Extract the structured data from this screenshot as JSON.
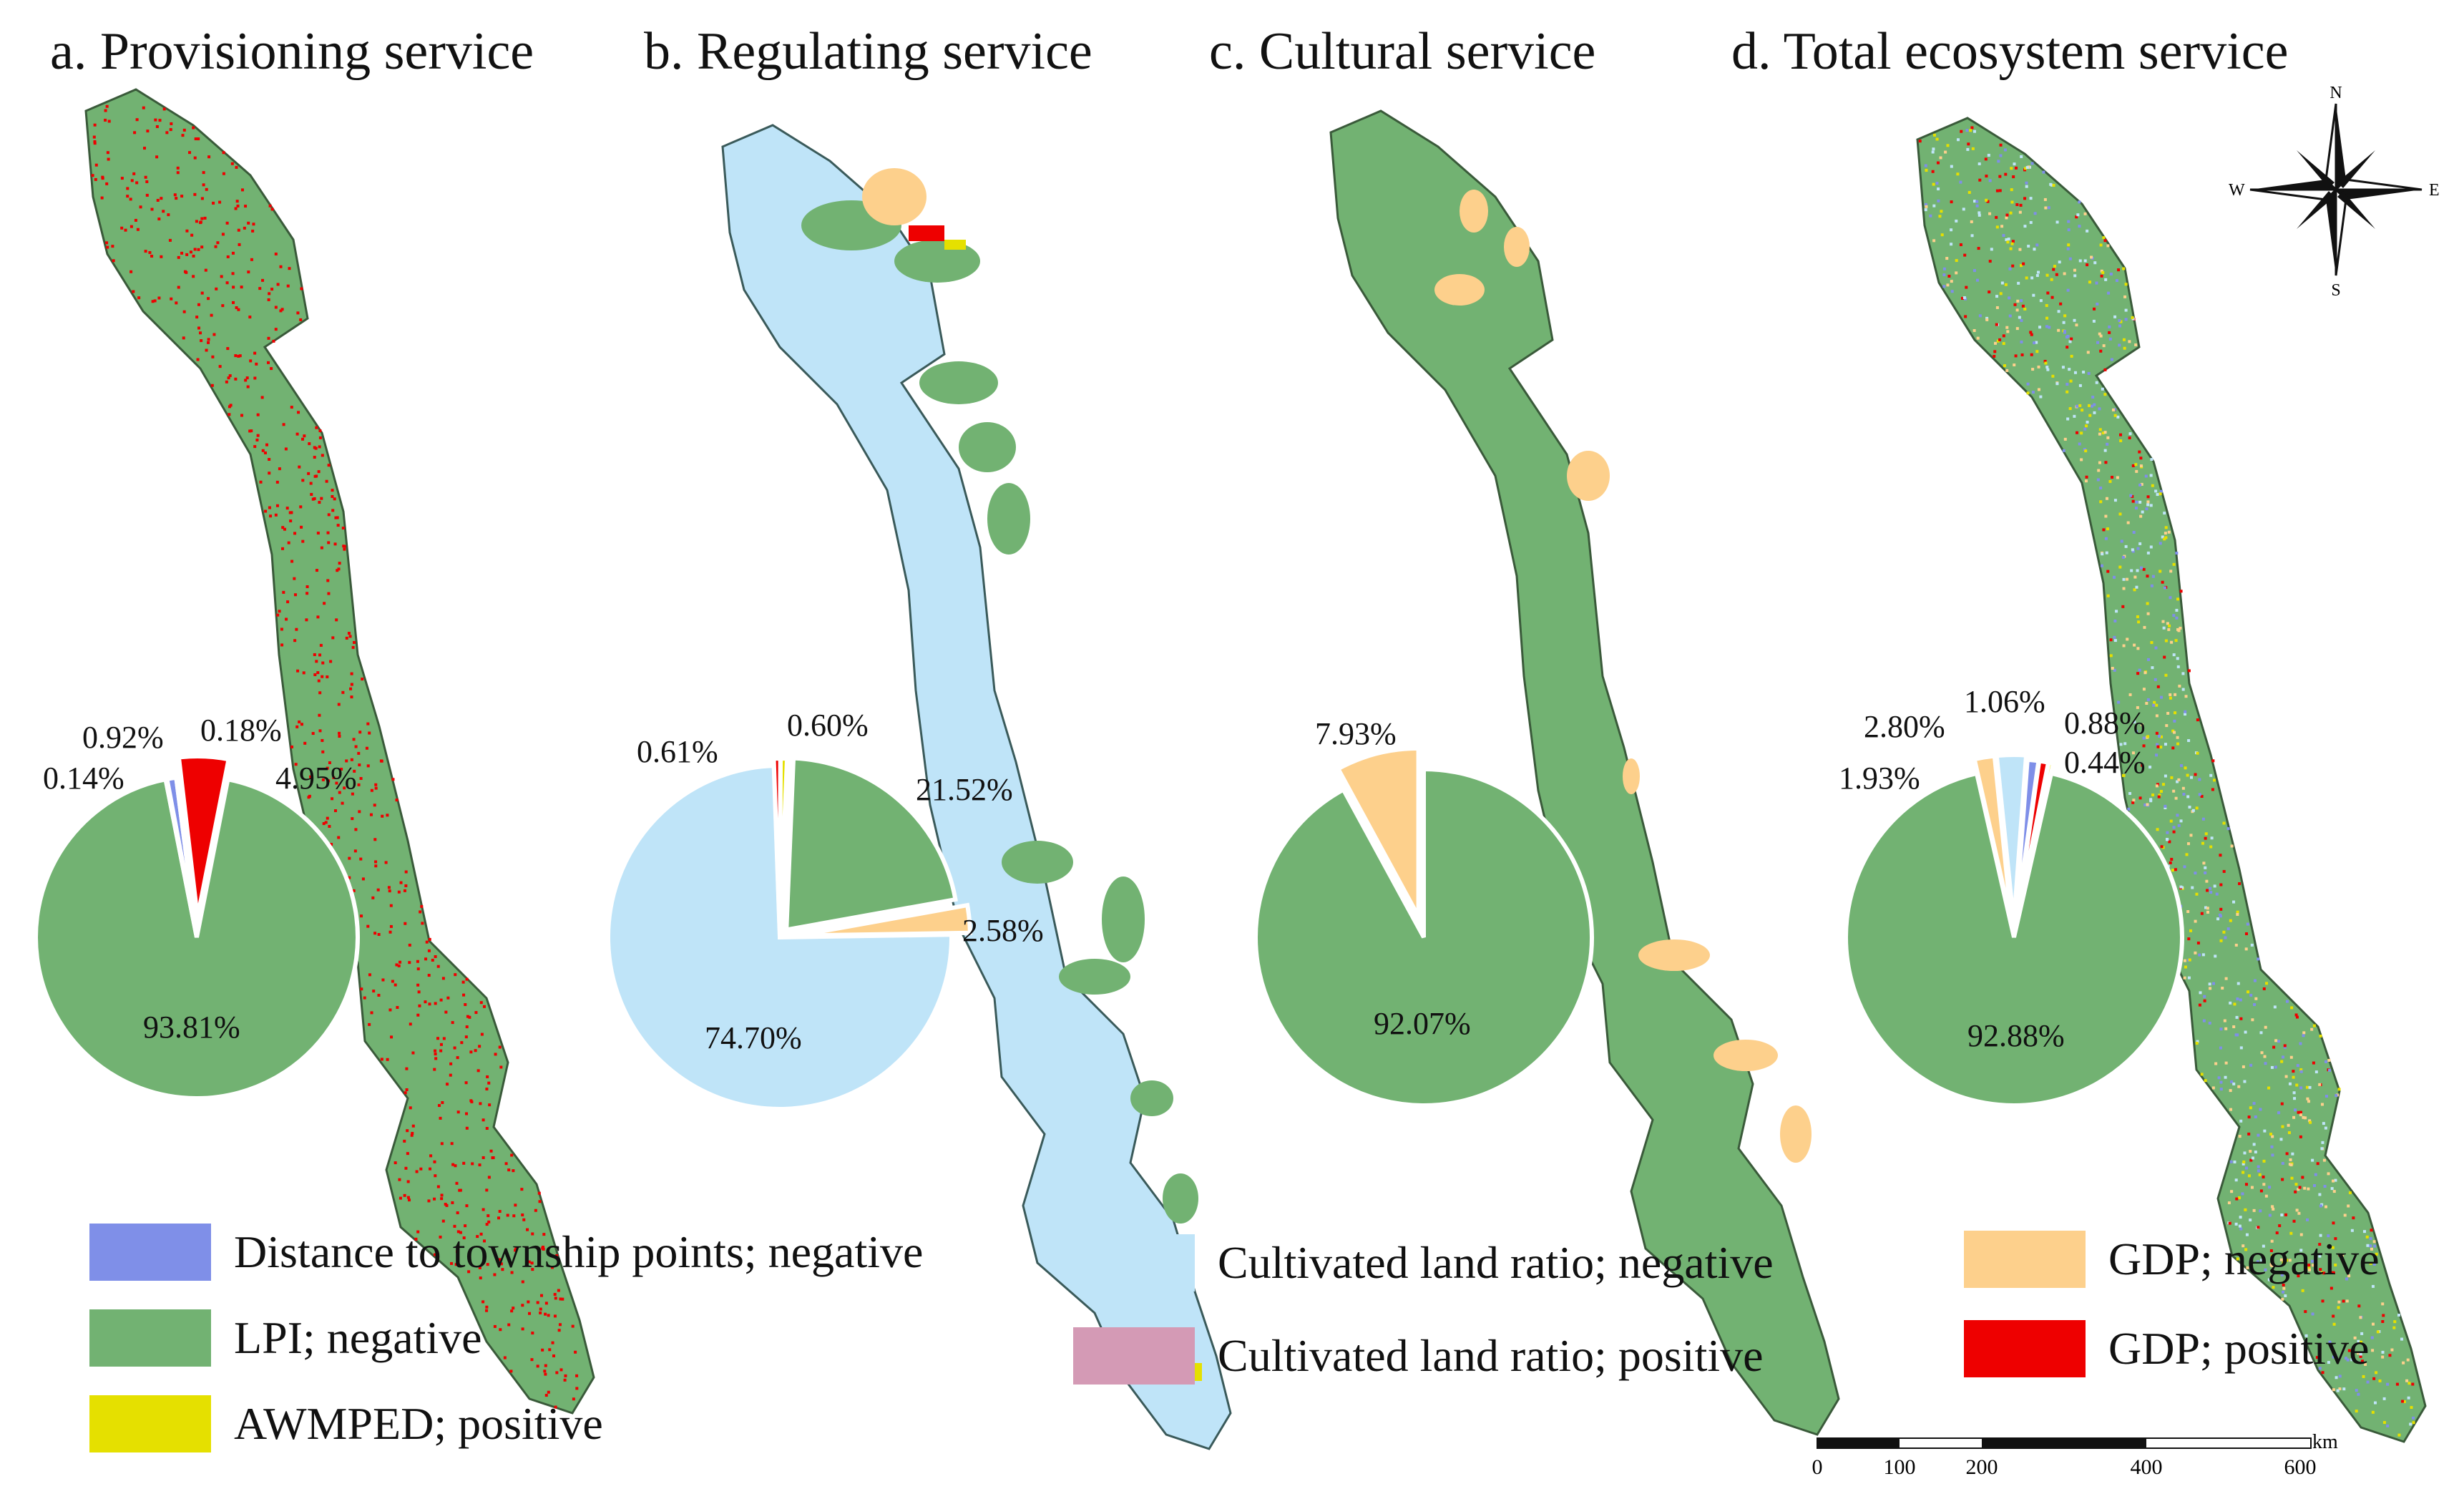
{
  "panels": [
    {
      "title": "a.  Provisioning service"
    },
    {
      "title": "b. Regulating service"
    },
    {
      "title": "c. Cultural service"
    },
    {
      "title": "d. Total ecosystem service"
    }
  ],
  "colors": {
    "distance_negative": "#7f8fe8",
    "lpi_negative": "#72b272",
    "awmped_positive": "#e5e000",
    "cultivated_negative": "#bfe4f8",
    "cultivated_positive": "#d49ab5",
    "gdp_negative": "#fdd08c",
    "gdp_positive": "#ee0000"
  },
  "legend": [
    {
      "label": "Distance to township points; negative",
      "color": "#7f8fe8"
    },
    {
      "label": "LPI; negative",
      "color": "#72b272"
    },
    {
      "label": "AWMPED; positive",
      "color": "#e5e000"
    },
    {
      "label": "Cultivated land ratio; negative",
      "color": "#bfe4f8"
    },
    {
      "label": "Cultivated land ratio; positive",
      "color": "#d49ab5"
    },
    {
      "label": "GDP; negative",
      "color": "#fdd08c"
    },
    {
      "label": "GDP; positive",
      "color": "#ee0000"
    }
  ],
  "compass": {
    "n": "N",
    "s": "S",
    "e": "E",
    "w": "W"
  },
  "scalebar": {
    "ticks": [
      "0",
      "100",
      "200",
      "400",
      "600"
    ],
    "unit": "km"
  },
  "chart_data": [
    {
      "type": "pie",
      "title": "a.  Provisioning service",
      "slices": [
        {
          "label": "LPI; negative",
          "value": 93.81,
          "color": "#72b272"
        },
        {
          "label": "Distance to township points; negative",
          "value": 0.92,
          "color": "#7f8fe8"
        },
        {
          "label": "Cultivated land ratio; negative",
          "value": 0.14,
          "color": "#bfe4f8"
        },
        {
          "label": "AWMPED; positive",
          "value": 0.18,
          "color": "#e5e000"
        },
        {
          "label": "GDP; positive",
          "value": 4.95,
          "color": "#ee0000"
        }
      ]
    },
    {
      "type": "pie",
      "title": "b. Regulating service",
      "slices": [
        {
          "label": "Cultivated land ratio; negative",
          "value": 74.7,
          "color": "#bfe4f8"
        },
        {
          "label": "GDP; positive",
          "value": 0.61,
          "color": "#ee0000"
        },
        {
          "label": "AWMPED; positive",
          "value": 0.6,
          "color": "#e5e000"
        },
        {
          "label": "LPI; negative",
          "value": 21.52,
          "color": "#72b272"
        },
        {
          "label": "GDP; negative",
          "value": 2.58,
          "color": "#fdd08c"
        }
      ]
    },
    {
      "type": "pie",
      "title": "c. Cultural service",
      "slices": [
        {
          "label": "LPI; negative",
          "value": 92.07,
          "color": "#72b272"
        },
        {
          "label": "GDP; negative",
          "value": 7.93,
          "color": "#fdd08c"
        }
      ]
    },
    {
      "type": "pie",
      "title": "d. Total ecosystem service",
      "slices": [
        {
          "label": "LPI; negative",
          "value": 92.88,
          "color": "#72b272"
        },
        {
          "label": "GDP; negative",
          "value": 1.93,
          "color": "#fdd08c"
        },
        {
          "label": "Cultivated land ratio; negative",
          "value": 2.8,
          "color": "#bfe4f8"
        },
        {
          "label": "Distance to township points; negative",
          "value": 1.06,
          "color": "#7f8fe8"
        },
        {
          "label": "GDP; positive",
          "value": 0.88,
          "color": "#ee0000"
        },
        {
          "label": "AWMPED; positive",
          "value": 0.44,
          "color": "#e5e000"
        }
      ]
    }
  ]
}
